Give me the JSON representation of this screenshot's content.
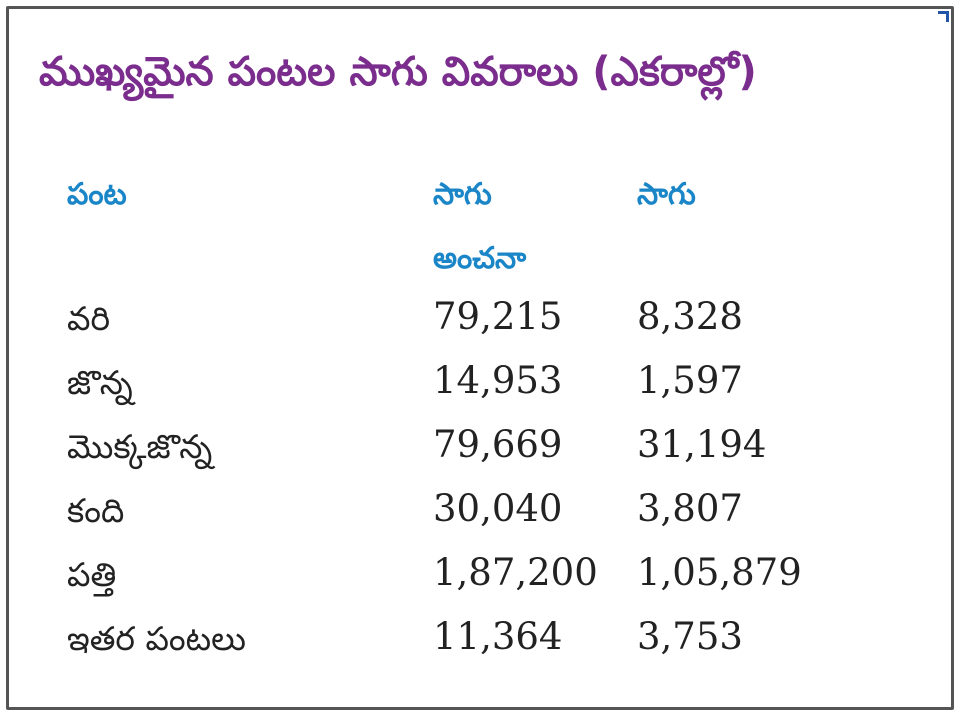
{
  "title": "ముఖ్యమైన పంటల సాగు వివరాలు (ఎకరాల్లో)",
  "headers": {
    "crop": "పంట",
    "estimate_line1": "సాగు",
    "estimate_line2": "అంచనా",
    "actual": "సాగు"
  },
  "rows": [
    {
      "crop": "వరి",
      "estimate": "79,215",
      "actual": "8,328"
    },
    {
      "crop": "జొన్న",
      "estimate": "14,953",
      "actual": "1,597"
    },
    {
      "crop": "మొక్కజొన్న",
      "estimate": "79,669",
      "actual": "31,194"
    },
    {
      "crop": "కంది",
      "estimate": "30,040",
      "actual": "3,807"
    },
    {
      "crop": "పత్తి",
      "estimate": "1,87,200",
      "actual": "1,05,879"
    },
    {
      "crop": "ఇతర పంటలు",
      "estimate": "11,364",
      "actual": "3,753"
    }
  ],
  "colors": {
    "title": "#7b2d8e",
    "header": "#1a86c8",
    "text": "#222222"
  }
}
